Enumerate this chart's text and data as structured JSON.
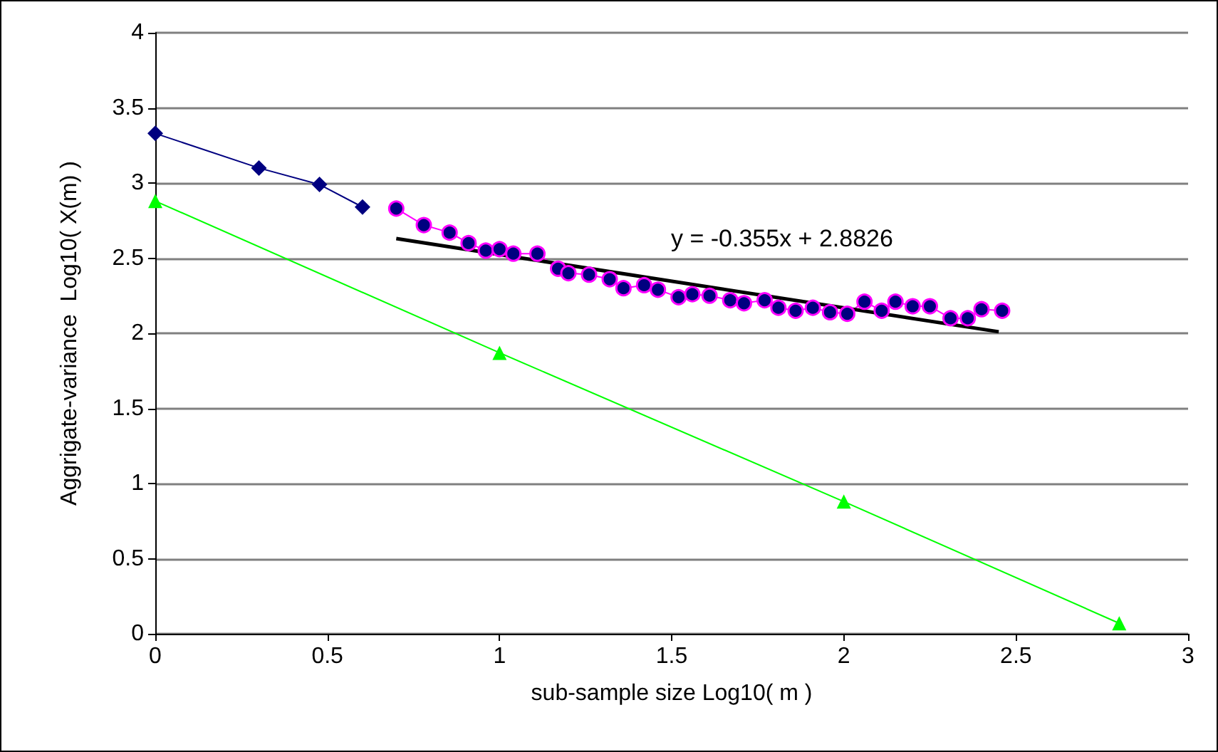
{
  "chart_data": {
    "type": "line",
    "xlabel": "sub-sample size Log10( m )",
    "ylabel": "Aggrigate-variance  Log10( X(m) )",
    "xlim": [
      0,
      3
    ],
    "xticks": [
      0,
      0.5,
      1,
      1.5,
      2,
      2.5,
      3
    ],
    "ylim": [
      0,
      4
    ],
    "yticks": [
      0,
      0.5,
      1,
      1.5,
      2,
      2.5,
      3,
      3.5,
      4
    ],
    "grid": "y",
    "annotations": [
      "y = -0.355x + 2.8826"
    ],
    "series": [
      {
        "color": "#000080",
        "marker": "diamond",
        "x": [
          0,
          0.301,
          0.477,
          0.602
        ],
        "values": [
          3.33,
          3.1,
          2.99,
          2.84
        ]
      },
      {
        "color": "#000080",
        "marker": "circle",
        "x": [
          0.7,
          0.78,
          0.855,
          0.91,
          0.96,
          1.0,
          1.04,
          1.11,
          1.17,
          1.2,
          1.26,
          1.32,
          1.36,
          1.42,
          1.46,
          1.52,
          1.56,
          1.61,
          1.67,
          1.71,
          1.77,
          1.81,
          1.86,
          1.91,
          1.96,
          2.01,
          2.06,
          2.11,
          2.15,
          2.2,
          2.25,
          2.31,
          2.36,
          2.4,
          2.46
        ],
        "values": [
          2.83,
          2.72,
          2.67,
          2.6,
          2.55,
          2.56,
          2.53,
          2.53,
          2.43,
          2.4,
          2.39,
          2.36,
          2.3,
          2.32,
          2.29,
          2.24,
          2.26,
          2.25,
          2.22,
          2.2,
          2.22,
          2.17,
          2.15,
          2.17,
          2.14,
          2.13,
          2.21,
          2.15,
          2.21,
          2.18,
          2.18,
          2.1,
          2.1,
          2.16,
          2.15
        ]
      },
      {
        "color": "#000000",
        "marker": "none",
        "x": [
          0.7,
          2.45
        ],
        "values": [
          2.63,
          2.01
        ]
      },
      {
        "color": "#00ff00",
        "marker": "triangle",
        "x": [
          0,
          1,
          2,
          2.8
        ],
        "values": [
          2.88,
          1.87,
          0.88,
          0.07
        ]
      }
    ]
  }
}
